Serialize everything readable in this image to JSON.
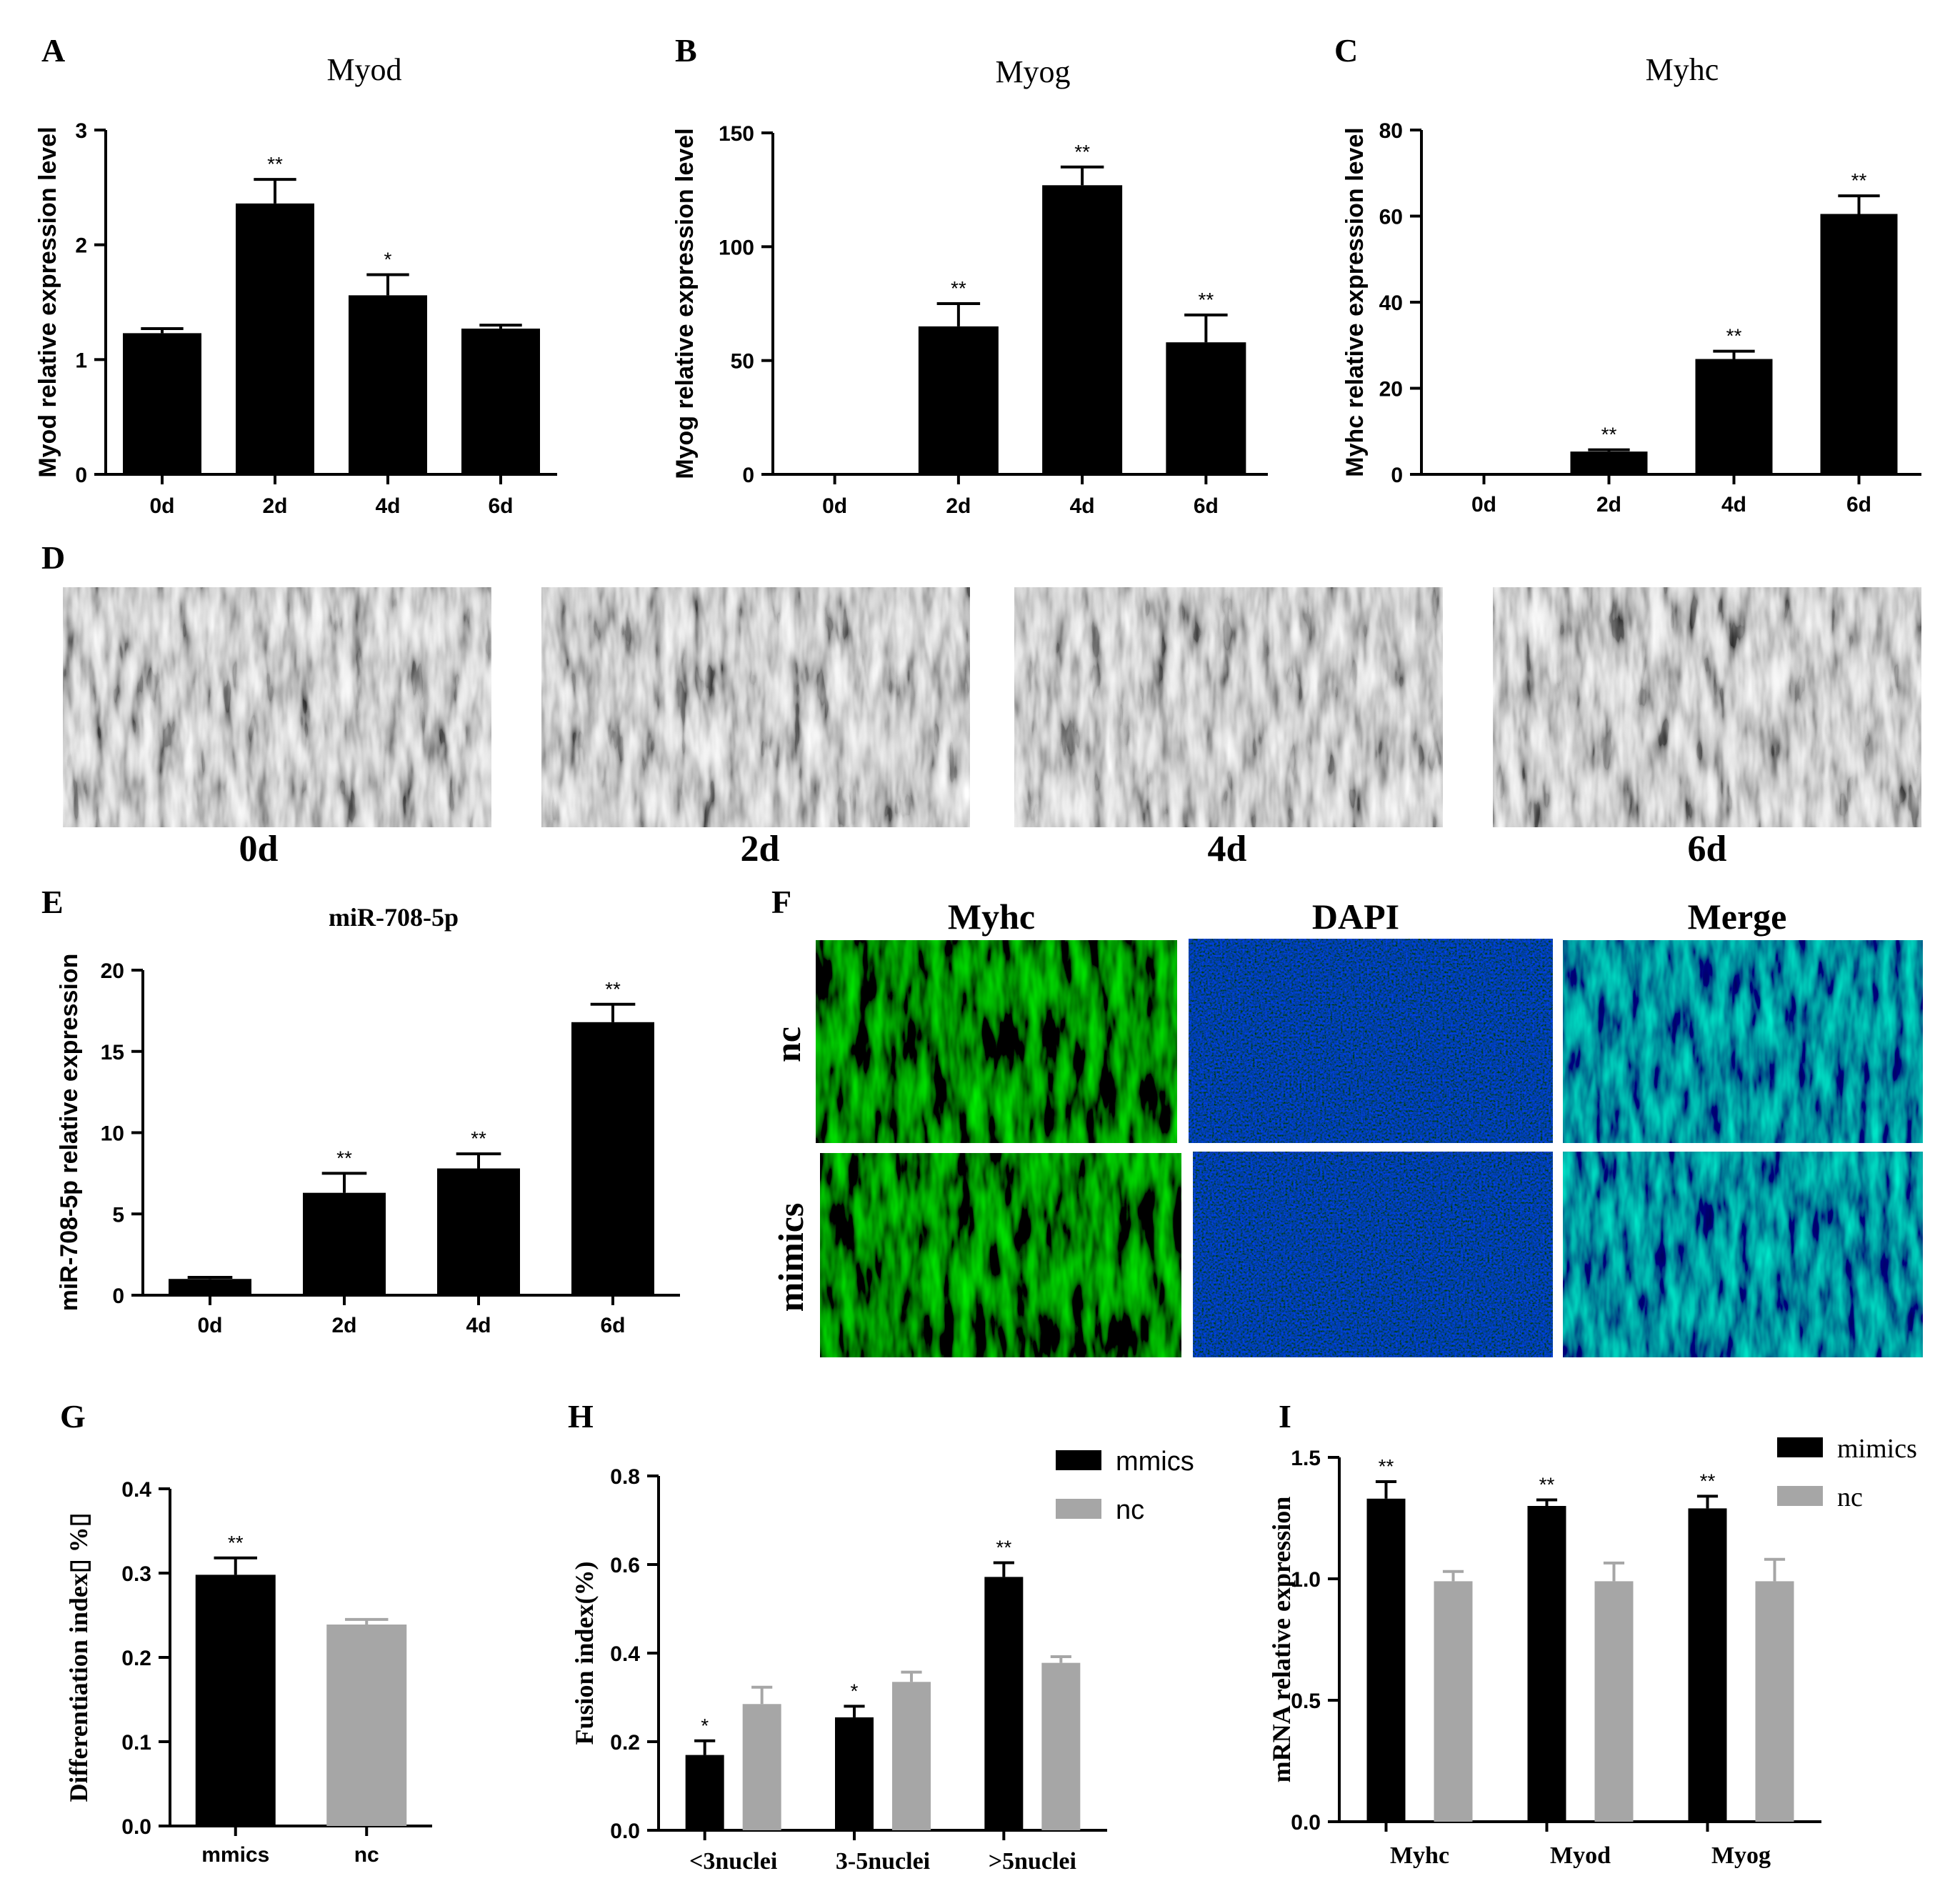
{
  "panel_labels": {
    "A": "A",
    "B": "B",
    "C": "C",
    "D": "D",
    "E": "E",
    "F": "F",
    "G": "G",
    "H": "H",
    "I": "I"
  },
  "chart_data": [
    {
      "id": "A",
      "type": "bar",
      "title": "Myod",
      "ylabel": "Myod relative expression level",
      "categories": [
        "0d",
        "2d",
        "4d",
        "6d"
      ],
      "values": [
        1.23,
        2.36,
        1.56,
        1.27
      ],
      "errors": [
        0.04,
        0.21,
        0.18,
        0.03
      ],
      "significance": [
        "",
        "**",
        "*",
        ""
      ],
      "ylim": [
        0,
        3
      ],
      "yticks": [
        0,
        1,
        2,
        3
      ],
      "colors": [
        "#000000"
      ]
    },
    {
      "id": "B",
      "type": "bar",
      "title": "Myog",
      "ylabel": "Myog relative expression level",
      "categories": [
        "0d",
        "2d",
        "4d",
        "6d"
      ],
      "values": [
        0,
        65,
        127,
        58
      ],
      "errors": [
        0,
        10,
        8,
        12
      ],
      "significance": [
        "",
        "**",
        "**",
        "**"
      ],
      "ylim": [
        0,
        150
      ],
      "yticks": [
        0,
        50,
        100,
        150
      ],
      "colors": [
        "#000000"
      ]
    },
    {
      "id": "C",
      "type": "bar",
      "title": "Myhc",
      "ylabel": "Myhc relative expression level",
      "categories": [
        "0d",
        "2d",
        "4d",
        "6d"
      ],
      "values": [
        0.2,
        5.3,
        26.8,
        60.5
      ],
      "errors": [
        0,
        0.4,
        1.8,
        4.2
      ],
      "significance": [
        "",
        "**",
        "**",
        "**"
      ],
      "ylim": [
        0,
        80
      ],
      "yticks": [
        0,
        20,
        40,
        60,
        80
      ],
      "colors": [
        "#000000"
      ]
    },
    {
      "id": "E",
      "type": "bar",
      "title": "miR-708-5p",
      "ylabel": "miR-708-5p relative expression",
      "categories": [
        "0d",
        "2d",
        "4d",
        "6d"
      ],
      "values": [
        1.0,
        6.3,
        7.8,
        16.8
      ],
      "errors": [
        0.1,
        1.2,
        0.9,
        1.1
      ],
      "significance": [
        "",
        "**",
        "**",
        "**"
      ],
      "ylim": [
        0,
        20
      ],
      "yticks": [
        0,
        5,
        10,
        15,
        20
      ],
      "colors": [
        "#000000"
      ]
    },
    {
      "id": "G",
      "type": "bar",
      "title": "",
      "ylabel": "Differentiation index▯ %▯",
      "categories": [
        "mmics",
        "nc"
      ],
      "values": [
        0.298,
        0.239
      ],
      "errors": [
        0.02,
        0.006
      ],
      "significance": [
        "**",
        ""
      ],
      "ylim": [
        0,
        0.4
      ],
      "yticks": [
        "0.0",
        "0.1",
        "0.2",
        "0.3",
        "0.4"
      ],
      "colors": [
        "#000000",
        "#a6a6a6"
      ]
    },
    {
      "id": "H",
      "type": "bar",
      "title": "",
      "ylabel": "Fusion index(%)",
      "categories": [
        "<3nuclei",
        "3-5nuclei",
        ">5nuclei"
      ],
      "series": [
        {
          "name": "mmics",
          "values": [
            0.17,
            0.255,
            0.572
          ],
          "errors": [
            0.032,
            0.025,
            0.032
          ],
          "significance": [
            "*",
            "*",
            "**"
          ],
          "color": "#000000"
        },
        {
          "name": "nc",
          "values": [
            0.285,
            0.335,
            0.378
          ],
          "errors": [
            0.038,
            0.022,
            0.014
          ],
          "significance": [
            "",
            "",
            ""
          ],
          "color": "#a6a6a6"
        }
      ],
      "ylim": [
        0,
        0.8
      ],
      "yticks": [
        "0.0",
        "0.2",
        "0.4",
        "0.6",
        "0.8"
      ],
      "legend": "top-right"
    },
    {
      "id": "I",
      "type": "bar",
      "title": "",
      "ylabel": "mRNA relative expression",
      "categories": [
        "Myhc",
        "Myod",
        "Myog"
      ],
      "series": [
        {
          "name": "mimics",
          "values": [
            1.33,
            1.3,
            1.29
          ],
          "errors": [
            0.07,
            0.025,
            0.05
          ],
          "significance": [
            "**",
            "**",
            "**"
          ],
          "color": "#000000"
        },
        {
          "name": "nc",
          "values": [
            0.99,
            0.99,
            0.99
          ],
          "errors": [
            0.04,
            0.075,
            0.09
          ],
          "significance": [
            "",
            "",
            ""
          ],
          "color": "#a6a6a6"
        }
      ],
      "ylim": [
        0,
        1.5
      ],
      "yticks": [
        "0.0",
        "0.5",
        "1.0",
        "1.5"
      ],
      "legend": "top-right"
    }
  ],
  "micrographs_D": {
    "labels": [
      "0d",
      "2d",
      "4d",
      "6d"
    ],
    "tone": "grayscale phase contrast"
  },
  "fluorescence_F": {
    "columns": [
      "Myhc",
      "DAPI",
      "Merge"
    ],
    "rows": [
      "nc",
      "mimics"
    ],
    "colors": {
      "Myhc": "#1fa51f",
      "DAPI": "#1a2ad0",
      "Merge": "#1f7f8a"
    }
  }
}
